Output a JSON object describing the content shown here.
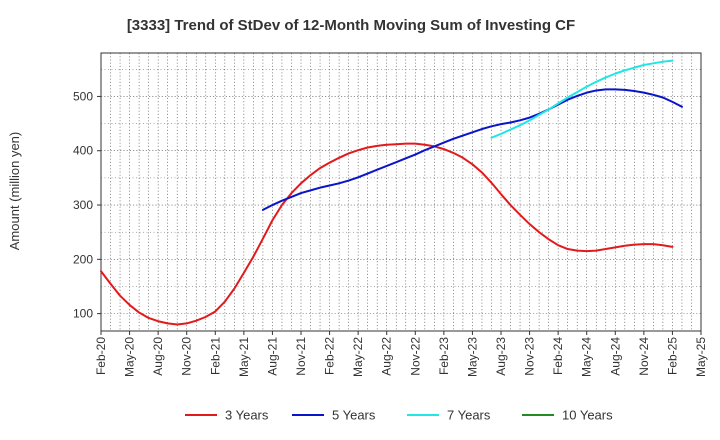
{
  "chart_data": {
    "type": "line",
    "title": "[3333]  Trend of StDev of 12-Month Moving Sum of Investing CF",
    "xlabel": "",
    "ylabel": "Amount (million yen)",
    "x_ticks": [
      "Feb-20",
      "May-20",
      "Aug-20",
      "Nov-20",
      "Feb-21",
      "May-21",
      "Aug-21",
      "Nov-21",
      "Feb-22",
      "May-22",
      "Aug-22",
      "Nov-22",
      "Feb-23",
      "May-23",
      "Aug-23",
      "Nov-23",
      "Feb-24",
      "May-24",
      "Aug-24",
      "Nov-24",
      "Feb-25",
      "May-25"
    ],
    "y_ticks": [
      100,
      200,
      300,
      400,
      500
    ],
    "ylim": [
      68,
      580
    ],
    "grid": true,
    "legend_position": "bottom",
    "series": [
      {
        "name": "3 Years",
        "color": "#e31a1c",
        "points": [
          [
            "Feb-20",
            178
          ],
          [
            "Mar-20",
            155
          ],
          [
            "Apr-20",
            133
          ],
          [
            "May-20",
            116
          ],
          [
            "Jun-20",
            102
          ],
          [
            "Jul-20",
            92
          ],
          [
            "Aug-20",
            86
          ],
          [
            "Sep-20",
            82
          ],
          [
            "Oct-20",
            80
          ],
          [
            "Nov-20",
            82
          ],
          [
            "Dec-20",
            87
          ],
          [
            "Jan-21",
            94
          ],
          [
            "Feb-21",
            104
          ],
          [
            "Mar-21",
            122
          ],
          [
            "Apr-21",
            146
          ],
          [
            "May-21",
            175
          ],
          [
            "Jun-21",
            205
          ],
          [
            "Jul-21",
            238
          ],
          [
            "Aug-21",
            272
          ],
          [
            "Sep-21",
            300
          ],
          [
            "Oct-21",
            322
          ],
          [
            "Nov-21",
            340
          ],
          [
            "Dec-21",
            355
          ],
          [
            "Jan-22",
            368
          ],
          [
            "Feb-22",
            378
          ],
          [
            "Mar-22",
            387
          ],
          [
            "Apr-22",
            395
          ],
          [
            "May-22",
            401
          ],
          [
            "Jun-22",
            406
          ],
          [
            "Jul-22",
            409
          ],
          [
            "Aug-22",
            411
          ],
          [
            "Sep-22",
            412
          ],
          [
            "Oct-22",
            413
          ],
          [
            "Nov-22",
            413
          ],
          [
            "Dec-22",
            411
          ],
          [
            "Jan-23",
            408
          ],
          [
            "Feb-23",
            403
          ],
          [
            "Mar-23",
            396
          ],
          [
            "Apr-23",
            387
          ],
          [
            "May-23",
            375
          ],
          [
            "Jun-23",
            360
          ],
          [
            "Jul-23",
            341
          ],
          [
            "Aug-23",
            320
          ],
          [
            "Sep-23",
            300
          ],
          [
            "Oct-23",
            282
          ],
          [
            "Nov-23",
            265
          ],
          [
            "Dec-23",
            250
          ],
          [
            "Jan-24",
            237
          ],
          [
            "Feb-24",
            226
          ],
          [
            "Mar-24",
            219
          ],
          [
            "Apr-24",
            216
          ],
          [
            "May-24",
            215
          ],
          [
            "Jun-24",
            216
          ],
          [
            "Jul-24",
            219
          ],
          [
            "Aug-24",
            222
          ],
          [
            "Sep-24",
            225
          ],
          [
            "Oct-24",
            227
          ],
          [
            "Nov-24",
            228
          ],
          [
            "Dec-24",
            228
          ],
          [
            "Jan-25",
            226
          ],
          [
            "Feb-25",
            223
          ]
        ]
      },
      {
        "name": "5 Years",
        "color": "#0a14c8",
        "points": [
          [
            "Jul-21",
            291
          ],
          [
            "Aug-21",
            300
          ],
          [
            "Sep-21",
            308
          ],
          [
            "Oct-21",
            315
          ],
          [
            "Nov-21",
            322
          ],
          [
            "Dec-21",
            327
          ],
          [
            "Jan-22",
            332
          ],
          [
            "Feb-22",
            336
          ],
          [
            "Mar-22",
            340
          ],
          [
            "Apr-22",
            345
          ],
          [
            "May-22",
            351
          ],
          [
            "Jun-22",
            358
          ],
          [
            "Jul-22",
            365
          ],
          [
            "Aug-22",
            372
          ],
          [
            "Sep-22",
            379
          ],
          [
            "Oct-22",
            386
          ],
          [
            "Nov-22",
            393
          ],
          [
            "Dec-22",
            401
          ],
          [
            "Jan-23",
            408
          ],
          [
            "Feb-23",
            415
          ],
          [
            "Mar-23",
            422
          ],
          [
            "Apr-23",
            428
          ],
          [
            "May-23",
            434
          ],
          [
            "Jun-23",
            440
          ],
          [
            "Jul-23",
            445
          ],
          [
            "Aug-23",
            449
          ],
          [
            "Sep-23",
            452
          ],
          [
            "Oct-23",
            456
          ],
          [
            "Nov-23",
            461
          ],
          [
            "Dec-23",
            468
          ],
          [
            "Jan-24",
            476
          ],
          [
            "Feb-24",
            485
          ],
          [
            "Mar-24",
            494
          ],
          [
            "Apr-24",
            501
          ],
          [
            "May-24",
            507
          ],
          [
            "Jun-24",
            511
          ],
          [
            "Jul-24",
            513
          ],
          [
            "Aug-24",
            513
          ],
          [
            "Sep-24",
            512
          ],
          [
            "Oct-24",
            510
          ],
          [
            "Nov-24",
            507
          ],
          [
            "Dec-24",
            503
          ],
          [
            "Jan-25",
            498
          ],
          [
            "Feb-25",
            490
          ],
          [
            "Mar-25",
            481
          ]
        ]
      },
      {
        "name": "7 Years",
        "color": "#22e6e6",
        "points": [
          [
            "Jul-23",
            424
          ],
          [
            "Aug-23",
            431
          ],
          [
            "Sep-23",
            439
          ],
          [
            "Oct-23",
            447
          ],
          [
            "Nov-23",
            456
          ],
          [
            "Dec-23",
            466
          ],
          [
            "Jan-24",
            476
          ],
          [
            "Feb-24",
            487
          ],
          [
            "Mar-24",
            498
          ],
          [
            "Apr-24",
            508
          ],
          [
            "May-24",
            518
          ],
          [
            "Jun-24",
            527
          ],
          [
            "Jul-24",
            535
          ],
          [
            "Aug-24",
            542
          ],
          [
            "Sep-24",
            548
          ],
          [
            "Oct-24",
            553
          ],
          [
            "Nov-24",
            558
          ],
          [
            "Dec-24",
            561
          ],
          [
            "Jan-25",
            564
          ],
          [
            "Feb-25",
            566
          ]
        ]
      },
      {
        "name": "10 Years",
        "color": "#228b22",
        "points": []
      }
    ]
  }
}
